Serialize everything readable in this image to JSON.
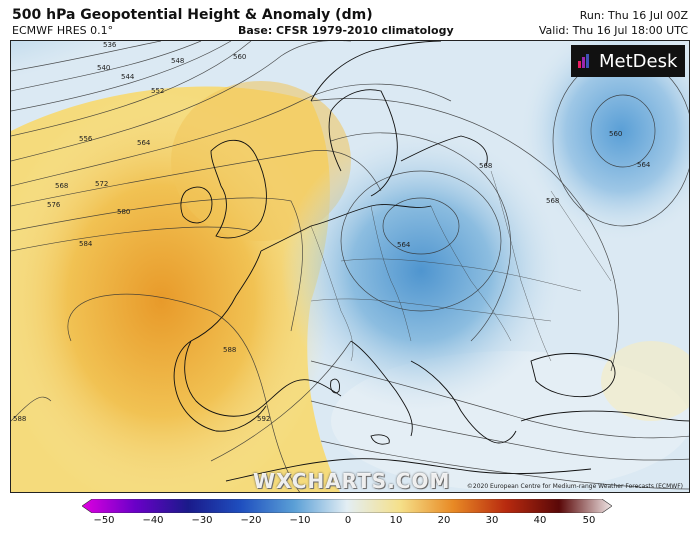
{
  "header": {
    "title": "500 hPa Geopotential Height & Anomaly (dm)",
    "model": "ECMWF HRES 0.1°",
    "base": "Base: CFSR 1979-2010 climatology",
    "run": "Run: Thu 16 Jul 00Z",
    "valid": "Valid: Thu 16 Jul 18:00 UTC"
  },
  "logo": {
    "text": "MetDesk",
    "icon": "metdesk-logo-icon"
  },
  "watermark": "WXCHARTS.COM",
  "copyright": "©2020 European Centre for Medium-range Weather Forecasts (ECMWF)",
  "contours": {
    "labels": [
      "536",
      "540",
      "544",
      "548",
      "552",
      "556",
      "560",
      "564",
      "568",
      "572",
      "576",
      "580",
      "584",
      "588",
      "592"
    ]
  },
  "colorbar": {
    "ticks": [
      "−50",
      "−40",
      "−30",
      "−20",
      "−10",
      "0",
      "10",
      "20",
      "30",
      "40",
      "50"
    ],
    "colors": [
      "#e000e0",
      "#5a00c8",
      "#1a1a9a",
      "#1f4fbf",
      "#5a9fd6",
      "#d8e8f2",
      "#f6e9a0",
      "#eba43a",
      "#c23a10",
      "#6a0a0a",
      "#f0e6e6"
    ]
  }
}
